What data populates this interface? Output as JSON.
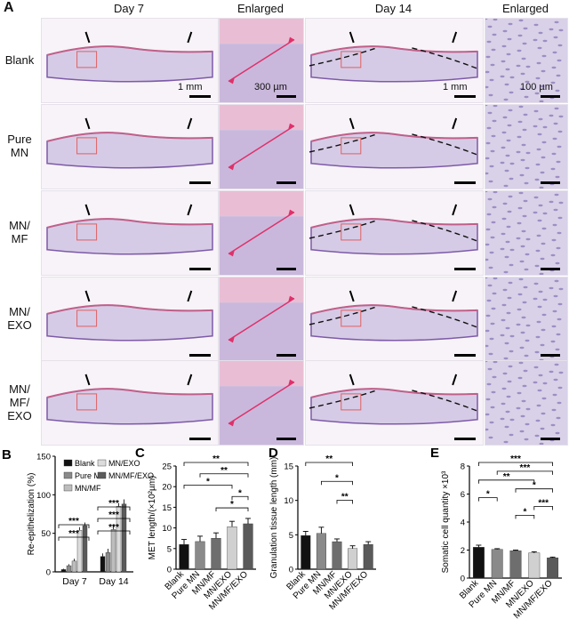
{
  "panelA": {
    "letter": "A",
    "col_headers": [
      "Day 7",
      "Enlarged",
      "Day 14",
      "Enlarged"
    ],
    "rows": [
      {
        "label_lines": [
          "Blank"
        ]
      },
      {
        "label_lines": [
          "Pure",
          "MN"
        ]
      },
      {
        "label_lines": [
          "MN/",
          "MF"
        ]
      },
      {
        "label_lines": [
          "MN/",
          "EXO"
        ]
      },
      {
        "label_lines": [
          "MN/",
          "MF/",
          "EXO"
        ]
      }
    ],
    "scale_labels": {
      "day7": "1 mm",
      "enlarged7": "300 µm",
      "day14": "1 mm",
      "enlarged14": "100 µm"
    }
  },
  "charts": [
    {
      "letter": "B",
      "type": "bar",
      "ylabel": "Re-epithelization (%)",
      "ylim": [
        0,
        150
      ],
      "yticks": [
        0,
        50,
        100,
        150
      ],
      "categories": [
        "Day 7",
        "Day 14"
      ],
      "series": [
        {
          "name": "Blank",
          "color": "#111111",
          "values": [
            3,
            20
          ]
        },
        {
          "name": "Pure MN",
          "color": "#8a8a8a",
          "values": [
            8,
            25
          ]
        },
        {
          "name": "MN/MF",
          "color": "#bdbdbd",
          "values": [
            14,
            55
          ]
        },
        {
          "name": "MN/EXO",
          "color": "#dcdcdc",
          "values": [
            54,
            85
          ]
        },
        {
          "name": "MN/MF/EXO",
          "color": "#5a5a5a",
          "values": [
            60,
            88
          ]
        }
      ],
      "errors": [
        [
          1,
          4
        ],
        [
          2,
          5
        ],
        [
          3,
          6
        ],
        [
          4,
          4
        ],
        [
          4,
          6
        ]
      ],
      "legend": [
        "Blank",
        "Pure MN",
        "MN/MF",
        "MN/EXO",
        "MN/MF/EXO"
      ],
      "sig": [
        "***",
        "***",
        "***",
        "***",
        "***",
        "***"
      ]
    },
    {
      "letter": "C",
      "type": "bar",
      "ylabel": "MET length/(×10²µm)",
      "ylim": [
        0,
        25
      ],
      "yticks": [
        0,
        5,
        10,
        15,
        20,
        25
      ],
      "categories": [
        "Blank",
        "Pure MN",
        "MN/MF",
        "MN/EXO",
        "MN/MF/EXO"
      ],
      "values": [
        6,
        6.7,
        7.5,
        10.3,
        11
      ],
      "errors": [
        1.2,
        1.3,
        1.3,
        1.3,
        1.3
      ],
      "colors": [
        "#111111",
        "#8a8a8a",
        "#6e6e6e",
        "#d0d0d0",
        "#5a5a5a"
      ],
      "sig": [
        "**",
        "**",
        "*",
        "*",
        "*"
      ]
    },
    {
      "letter": "D",
      "type": "bar",
      "ylabel": "Granulation tissue length (mm)",
      "ylim": [
        0,
        15
      ],
      "yticks": [
        0,
        5,
        10,
        15
      ],
      "categories": [
        "Blank",
        "Pure MN",
        "MN/MF",
        "MN/EXO",
        "MN/MF/EXO"
      ],
      "values": [
        4.9,
        5.2,
        4.0,
        3.0,
        3.6
      ],
      "errors": [
        0.6,
        0.9,
        0.4,
        0.4,
        0.4
      ],
      "colors": [
        "#111111",
        "#8a8a8a",
        "#6e6e6e",
        "#d0d0d0",
        "#5a5a5a"
      ],
      "sig": [
        "**",
        "*",
        "**"
      ]
    },
    {
      "letter": "E",
      "type": "bar",
      "ylabel": "Somatic cell quantity ×10³",
      "ylim": [
        0,
        8
      ],
      "yticks": [
        0,
        2,
        4,
        6,
        8
      ],
      "categories": [
        "Blank",
        "Pure MN",
        "MN/MF",
        "MN/EXO",
        "MN/MF/EXO"
      ],
      "values": [
        2.2,
        2.05,
        1.95,
        1.8,
        1.45
      ],
      "errors": [
        0.15,
        0.05,
        0.05,
        0.08,
        0.05
      ],
      "colors": [
        "#111111",
        "#8a8a8a",
        "#6e6e6e",
        "#d0d0d0",
        "#5a5a5a"
      ],
      "sig": [
        "***",
        "***",
        "**",
        "*",
        "*",
        "***",
        "*"
      ]
    }
  ]
}
